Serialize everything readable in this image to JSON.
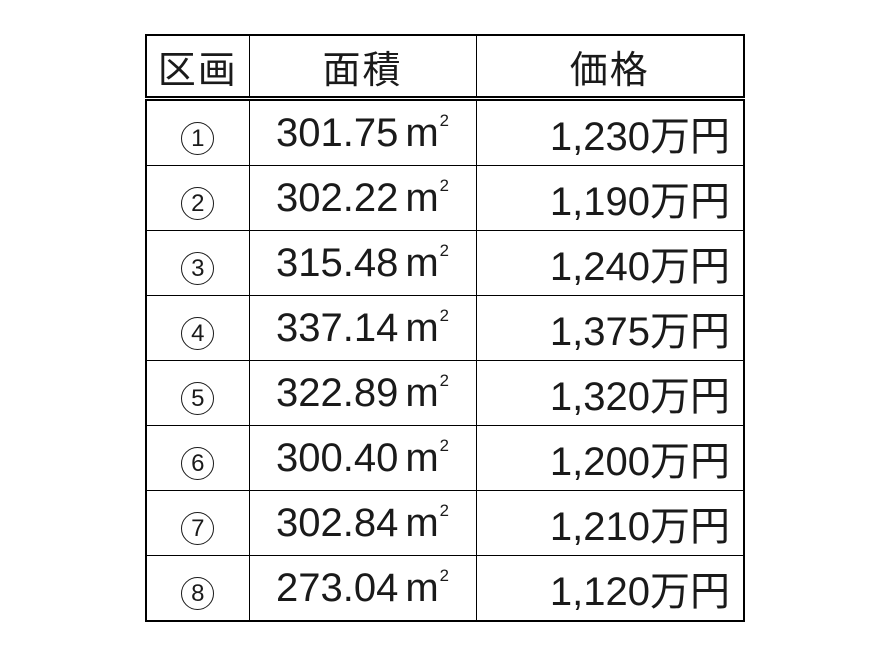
{
  "page": {
    "background_color": "#ffffff",
    "text_color": "#1a1a1a",
    "border_color": "#000000"
  },
  "table": {
    "headers": {
      "lot": "区画",
      "area": "面積",
      "price": "価格"
    },
    "area_unit": {
      "base": "m",
      "sup": "2",
      "display": "㎡"
    },
    "rows": [
      {
        "lot_number": "1",
        "lot_display": "①",
        "area_value": "301.75",
        "price": "1,230万円"
      },
      {
        "lot_number": "2",
        "lot_display": "②",
        "area_value": "302.22",
        "price": "1,190万円"
      },
      {
        "lot_number": "3",
        "lot_display": "③",
        "area_value": "315.48",
        "price": "1,240万円"
      },
      {
        "lot_number": "4",
        "lot_display": "④",
        "area_value": "337.14",
        "price": "1,375万円"
      },
      {
        "lot_number": "5",
        "lot_display": "⑤",
        "area_value": "322.89",
        "price": "1,320万円"
      },
      {
        "lot_number": "6",
        "lot_display": "⑥",
        "area_value": "300.40",
        "price": "1,200万円"
      },
      {
        "lot_number": "7",
        "lot_display": "⑦",
        "area_value": "302.84",
        "price": "1,210万円"
      },
      {
        "lot_number": "8",
        "lot_display": "⑧",
        "area_value": "273.04",
        "price": "1,120万円"
      }
    ]
  }
}
